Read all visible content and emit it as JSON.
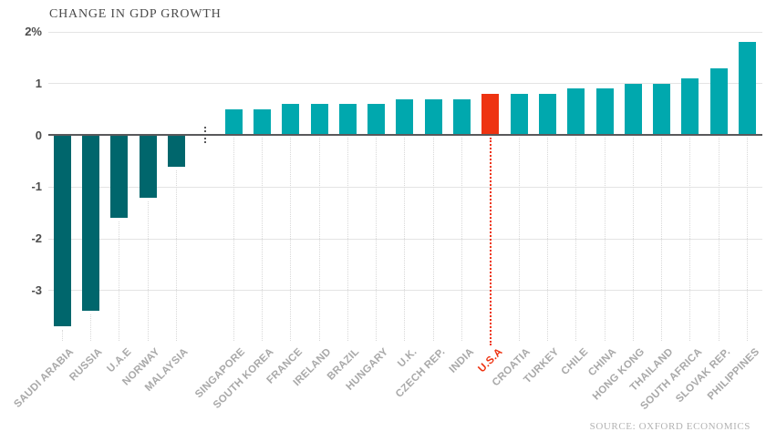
{
  "title": "CHANGE IN GDP GROWTH",
  "source": "SOURCE: OXFORD ECONOMICS",
  "y_axis": {
    "ticks": [
      {
        "label": "2%",
        "value": 2
      },
      {
        "label": "1",
        "value": 1
      },
      {
        "label": "0",
        "value": 0
      },
      {
        "label": "-1",
        "value": -1
      },
      {
        "label": "-2",
        "value": -2
      },
      {
        "label": "-3",
        "value": -3
      }
    ]
  },
  "chart_data": {
    "type": "bar",
    "title": "CHANGE IN GDP GROWTH",
    "unit": "percentage points",
    "ylim": [
      -3.9,
      2
    ],
    "grid": "horizontal",
    "legend": "none",
    "highlight_category": "U.S.A",
    "group_gap_after_index": 4,
    "categories": [
      "SAUDI ARABIA",
      "RUSSIA",
      "U.A.E",
      "NORWAY",
      "MALAYSIA",
      "SINGAPORE",
      "SOUTH KOREA",
      "FRANCE",
      "IRELAND",
      "BRAZIL",
      "HUNGARY",
      "U.K.",
      "CZECH REP.",
      "INDIA",
      "U.S.A",
      "CROATIA",
      "TURKEY",
      "CHILE",
      "CHINA",
      "HONG KONG",
      "THAILAND",
      "SOUTH AFRICA",
      "SLOVAK REP.",
      "PHILIPPINES"
    ],
    "values": [
      -3.7,
      -3.4,
      -1.6,
      -1.2,
      -0.6,
      0.5,
      0.5,
      0.6,
      0.6,
      0.6,
      0.6,
      0.7,
      0.7,
      0.7,
      0.8,
      0.8,
      0.8,
      0.9,
      0.9,
      1.0,
      1.0,
      1.1,
      1.3,
      1.8
    ]
  },
  "colors": {
    "negative_bar": "#00666C",
    "positive_bar": "#00A8AE",
    "highlight_bar": "#EE3311",
    "grid_line": "#E4E4E4",
    "zero_axis": "#59595B",
    "axis_label": "#4D4D4D",
    "category_label": "#A9A9A9",
    "title_text": "#4A4A4A",
    "source_text": "#B3B3B3"
  }
}
